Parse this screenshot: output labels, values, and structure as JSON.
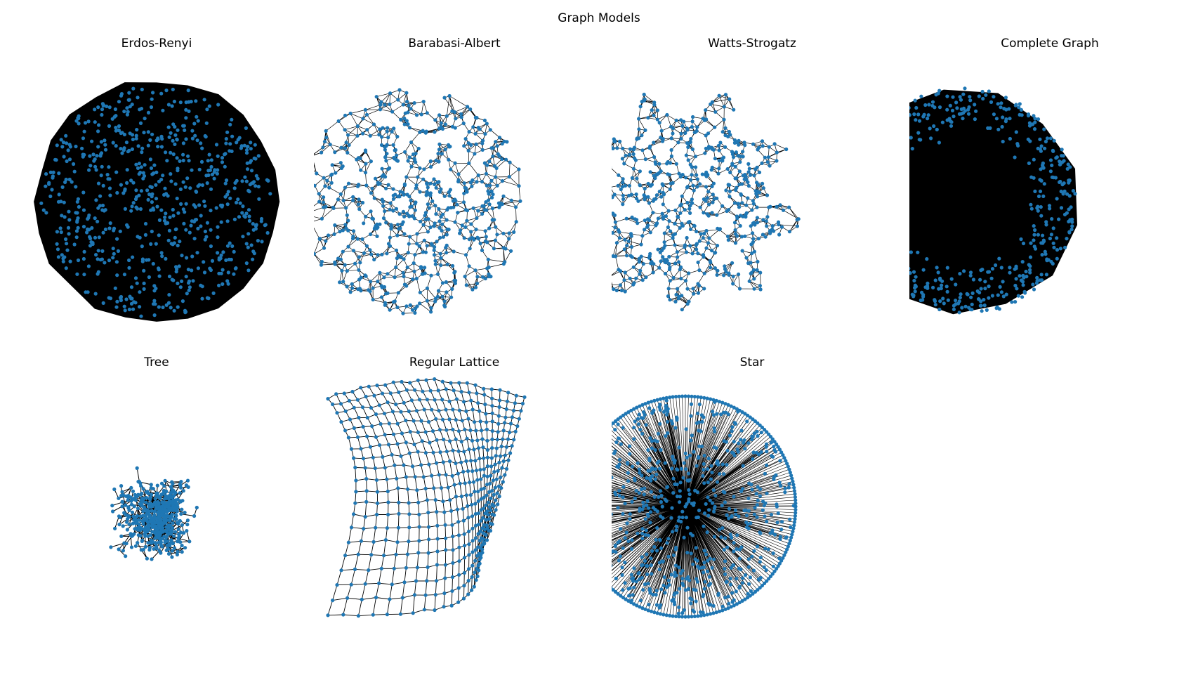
{
  "figure": {
    "title": "Graph Models"
  },
  "panels": [
    {
      "title": "Erdos-Renyi",
      "model": "random",
      "shape": "disc"
    },
    {
      "title": "Barabasi-Albert",
      "model": "preferential-attachment",
      "shape": "disc-spiky"
    },
    {
      "title": "Watts-Strogatz",
      "model": "small-world",
      "shape": "disc-spiky"
    },
    {
      "title": "Complete Graph",
      "model": "complete",
      "shape": "filled-polygon"
    },
    {
      "title": "Tree",
      "model": "tree",
      "shape": "branching"
    },
    {
      "title": "Regular Lattice",
      "model": "grid",
      "shape": "warped-grid"
    },
    {
      "title": "Star",
      "model": "star",
      "shape": "radial"
    }
  ],
  "colors": {
    "node": "#1f77b4",
    "edge": "#000000"
  }
}
